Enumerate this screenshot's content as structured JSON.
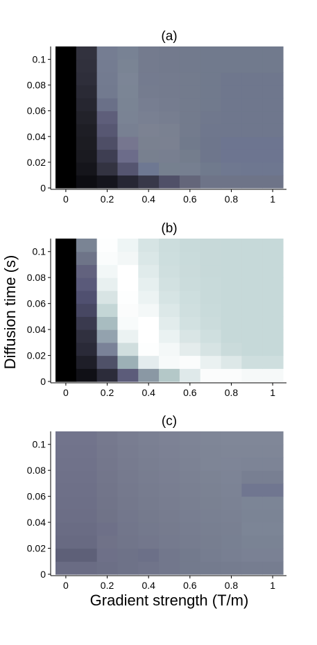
{
  "chart_data": {
    "type": "heatmap",
    "shared_xlabel": "Gradient strength (T/m)",
    "shared_ylabel": "Diffusion time (s)",
    "x_bins": [
      0,
      0.1,
      0.2,
      0.3,
      0.4,
      0.5,
      0.6,
      0.7,
      0.8,
      0.9,
      1.0
    ],
    "y_bins": [
      0.0,
      0.01,
      0.02,
      0.03,
      0.04,
      0.05,
      0.06,
      0.07,
      0.08,
      0.09,
      0.1,
      0.11
    ],
    "xlim": [
      -0.05,
      1.05
    ],
    "ylim": [
      0,
      0.11
    ],
    "x_ticks": [
      0,
      0.2,
      0.4,
      0.6,
      0.8,
      1
    ],
    "x_tick_labels": [
      "0",
      "0.2",
      "0.4",
      "0.6",
      "0.8",
      "1"
    ],
    "y_ticks": [
      0,
      0.02,
      0.04,
      0.06,
      0.08,
      0.1
    ],
    "y_tick_labels": [
      "0",
      "0.02",
      "0.04",
      "0.06",
      "0.08",
      "0.1"
    ],
    "panels": [
      {
        "title": "(a)",
        "z": [
          [
            "#000000",
            "#0d0d12",
            "#15151d",
            "#272734",
            "#383849",
            "#505068",
            "#64667a",
            "#6e7488",
            "#6e7488",
            "#6e7488",
            "#6e7488"
          ],
          [
            "#000000",
            "#15151b",
            "#333341",
            "#555570",
            "#6e7892",
            "#76808f",
            "#767f90",
            "#707a8d",
            "#6f7890",
            "#6e7790",
            "#6e7790"
          ],
          [
            "#000000",
            "#1a1a20",
            "#3e3e52",
            "#6c6c8a",
            "#78808f",
            "#787f90",
            "#747d8d",
            "#6e768c",
            "#6d7590",
            "#6d7590",
            "#6d7590"
          ],
          [
            "#000000",
            "#1c1c22",
            "#4e4e66",
            "#76768f",
            "#7a8190",
            "#7b8191",
            "#717a8c",
            "#6e768c",
            "#6d7590",
            "#6d7590",
            "#6d7590"
          ],
          [
            "#000000",
            "#1e1e25",
            "#575772",
            "#788092",
            "#7c8292",
            "#7a8191",
            "#737b8d",
            "#6f778d",
            "#6f778d",
            "#6f778d",
            "#6f778d"
          ],
          [
            "#000000",
            "#22222a",
            "#5e5e7a",
            "#7a8394",
            "#798092",
            "#777e90",
            "#737b8d",
            "#70788d",
            "#6f778d",
            "#6f778d",
            "#6f778d"
          ],
          [
            "#000000",
            "#262630",
            "#6a7088",
            "#7a8494",
            "#777e91",
            "#757c8f",
            "#737b8d",
            "#717a8d",
            "#6f778d",
            "#6f778d",
            "#6f778d"
          ],
          [
            "#000000",
            "#2a2a35",
            "#727a8f",
            "#7b8595",
            "#757c8f",
            "#747b8e",
            "#737b8d",
            "#717a8d",
            "#6f778d",
            "#6f778d",
            "#6f778d"
          ],
          [
            "#000000",
            "#2e2e3a",
            "#737b90",
            "#7c8596",
            "#747b8f",
            "#747b8e",
            "#737b8d",
            "#717a8d",
            "#6f778d",
            "#6f778d",
            "#6f778d"
          ],
          [
            "#000000",
            "#30303c",
            "#747c91",
            "#7a8494",
            "#747b8e",
            "#737a8d",
            "#727a8d",
            "#717a8d",
            "#717a8d",
            "#717a8d",
            "#717a8d"
          ],
          [
            "#000000",
            "#32323e",
            "#757d92",
            "#788294",
            "#747b8e",
            "#737a8d",
            "#727a8d",
            "#717a8d",
            "#717a8d",
            "#717a8d",
            "#717a8d"
          ]
        ]
      },
      {
        "title": "(b)",
        "z": [
          [
            "#000000",
            "#101016",
            "#2c2c3a",
            "#5c5c7a",
            "#8a98a4",
            "#b4c8c8",
            "#dfe9ea",
            "#fbfcfc",
            "#fbfcfc",
            "#f6f9f9",
            "#f6f9f9"
          ],
          [
            "#000000",
            "#1e1e28",
            "#4f5168",
            "#9cb0b6",
            "#e4ecee",
            "#f7fafa",
            "#fbfcfc",
            "#eaf1f1",
            "#dde8e8",
            "#cedede",
            "#cedede"
          ],
          [
            "#000000",
            "#2a2a38",
            "#7a8298",
            "#d0dede",
            "#fdfefe",
            "#f4f8f8",
            "#e4ecec",
            "#d6e3e3",
            "#cadbdb",
            "#c6d9d9",
            "#c6d9d9"
          ],
          [
            "#000000",
            "#30303f",
            "#93a2ae",
            "#ebf2f2",
            "#ffffff",
            "#eaf2f2",
            "#d9e5e5",
            "#cfdfdf",
            "#c6d9d9",
            "#c6d9d9",
            "#c6d9d9"
          ],
          [
            "#000000",
            "#3a3a4e",
            "#a8bcc0",
            "#f8fbfb",
            "#ffffff",
            "#e2ecec",
            "#d2e1e1",
            "#cbdcdc",
            "#c6d9d9",
            "#c6d9d9",
            "#c6d9d9"
          ],
          [
            "#000000",
            "#474762",
            "#c4d6d6",
            "#fbfcfc",
            "#f4f8f8",
            "#dce8e8",
            "#cfdfdf",
            "#c9dbdb",
            "#c6d9d9",
            "#c6d9d9",
            "#c6d9d9"
          ],
          [
            "#000000",
            "#505070",
            "#d8e4e4",
            "#fdfefe",
            "#ecf3f3",
            "#d6e4e4",
            "#cddede",
            "#c8dada",
            "#c6d9d9",
            "#c6d9d9",
            "#c6d9d9"
          ],
          [
            "#000000",
            "#5a5a7a",
            "#e8f0f0",
            "#ffffff",
            "#e6efef",
            "#d2e1e1",
            "#cbdcdc",
            "#c8dada",
            "#c6d9d9",
            "#c6d9d9",
            "#c6d9d9"
          ],
          [
            "#000000",
            "#62627e",
            "#f2f7f7",
            "#ffffff",
            "#e0ebeb",
            "#cfdfdf",
            "#cadbdb",
            "#c7d9d9",
            "#c6d9d9",
            "#c6d9d9",
            "#c6d9d9"
          ],
          [
            "#000000",
            "#6e7488",
            "#fafcfc",
            "#f3f7f7",
            "#dae7e7",
            "#cddede",
            "#c9dbdb",
            "#c7d9d9",
            "#c6d9d9",
            "#c6d9d9",
            "#c6d9d9"
          ],
          [
            "#000000",
            "#7a8494",
            "#fdfefe",
            "#eef5f5",
            "#d6e4e4",
            "#ccdddd",
            "#c8dada",
            "#c7d9d9",
            "#c6d9d9",
            "#c6d9d9",
            "#c6d9d9"
          ]
        ]
      },
      {
        "title": "(c)",
        "z": [
          [
            "#6a6c84",
            "#6a6c84",
            "#6c6f86",
            "#6e7288",
            "#70748a",
            "#72778c",
            "#737a8d",
            "#747b8e",
            "#757c8f",
            "#767d90",
            "#767d90"
          ],
          [
            "#5e6078",
            "#5e6078",
            "#6e7088",
            "#6e7288",
            "#6c7088",
            "#72778c",
            "#737a8d",
            "#767d90",
            "#787f92",
            "#7a8194",
            "#7a8194"
          ],
          [
            "#686a82",
            "#686a82",
            "#707288",
            "#71758a",
            "#73778c",
            "#757a8e",
            "#767c8f",
            "#777e90",
            "#788092",
            "#7a8394",
            "#7a8394"
          ],
          [
            "#6a6c84",
            "#6a6c84",
            "#6e7088",
            "#72768b",
            "#74798d",
            "#767b8e",
            "#777d90",
            "#787f91",
            "#798092",
            "#7c8596",
            "#7c8596"
          ],
          [
            "#6c6e86",
            "#6c6e86",
            "#707388",
            "#73778c",
            "#757a8d",
            "#777c8f",
            "#787e91",
            "#798092",
            "#7a8193",
            "#7b8495",
            "#7b8495"
          ],
          [
            "#6d6f87",
            "#6d6f87",
            "#717489",
            "#74788c",
            "#767b8e",
            "#787d90",
            "#797f91",
            "#7a8192",
            "#7b8294",
            "#7c8596",
            "#7c8596"
          ],
          [
            "#6e7088",
            "#6e7088",
            "#72758a",
            "#75798d",
            "#777c8f",
            "#797e91",
            "#7a8092",
            "#7b8293",
            "#7c8395",
            "#707690",
            "#707690"
          ],
          [
            "#6f7189",
            "#6f7189",
            "#73768b",
            "#767a8e",
            "#787d90",
            "#7a7f92",
            "#7b8193",
            "#7c8394",
            "#7d8496",
            "#787f92",
            "#787f92"
          ],
          [
            "#70728a",
            "#70728a",
            "#74778c",
            "#777b8f",
            "#797e91",
            "#7b8093",
            "#7c8294",
            "#7e8596",
            "#7e8597",
            "#7d8496",
            "#7d8496"
          ],
          [
            "#71738b",
            "#71738b",
            "#75788d",
            "#787c90",
            "#7a7f92",
            "#7c8194",
            "#7d8395",
            "#7e8596",
            "#7f8697",
            "#7f8697",
            "#7f8697"
          ],
          [
            "#72748c",
            "#72748c",
            "#76798e",
            "#797d91",
            "#7b8093",
            "#7d8295",
            "#7e8496",
            "#7f8697",
            "#808798",
            "#808798",
            "#808798"
          ]
        ]
      }
    ]
  }
}
